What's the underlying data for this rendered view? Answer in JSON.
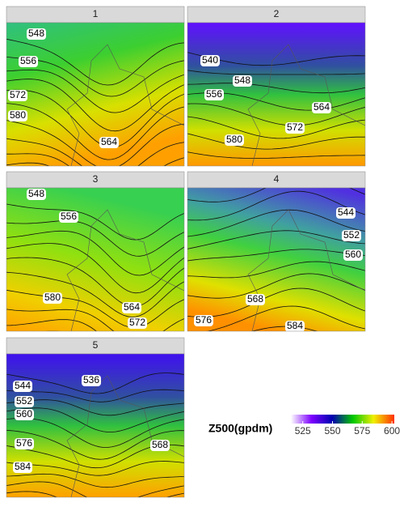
{
  "panels": [
    {
      "title": "1",
      "labels": [
        548,
        556,
        572,
        580,
        564
      ]
    },
    {
      "title": "2",
      "labels": [
        540,
        548,
        556,
        564,
        572,
        580
      ]
    },
    {
      "title": "3",
      "labels": [
        548,
        556,
        580,
        564,
        572
      ]
    },
    {
      "title": "4",
      "labels": [
        544,
        552,
        560,
        568,
        576,
        584
      ]
    },
    {
      "title": "5",
      "labels": [
        536,
        544,
        552,
        560,
        576,
        584,
        568
      ]
    }
  ],
  "legend": {
    "title": "Z500(gpdm)",
    "range": [
      515,
      602
    ],
    "ticks": [
      525,
      550,
      575,
      600
    ],
    "colors": [
      "#ffffff",
      "#7d00ff",
      "#0000b0",
      "#00c800",
      "#f0f000",
      "#ff3000"
    ]
  }
}
